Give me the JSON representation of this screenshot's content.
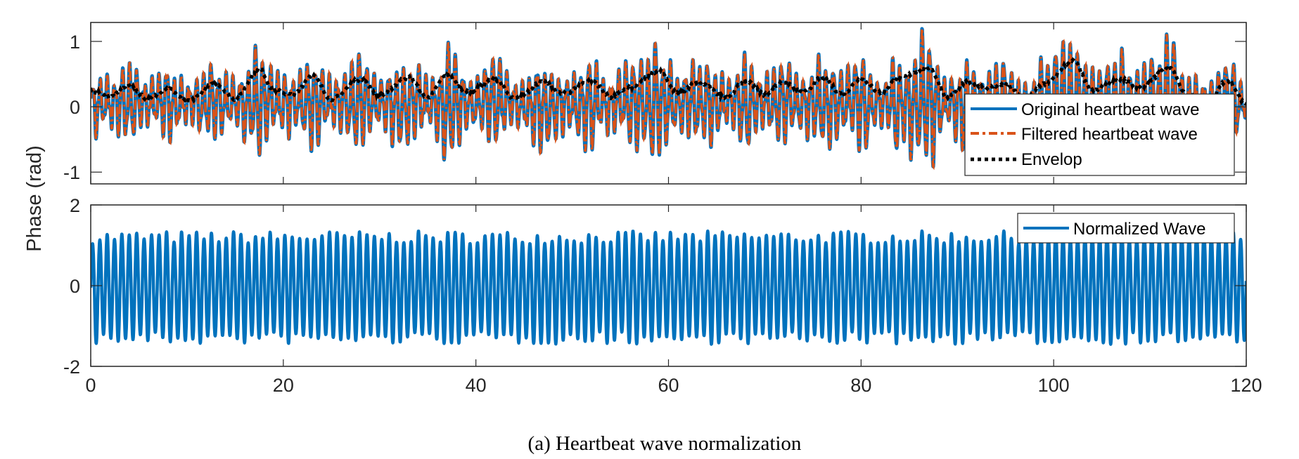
{
  "caption": "(a) Heartbeat wave normalization",
  "chart_data": [
    {
      "type": "line",
      "panel": "top",
      "title": "",
      "xlabel": "",
      "ylabel": "Phase (rad)",
      "xlim": [
        0,
        120
      ],
      "ylim": [
        -1.18,
        1.29
      ],
      "xticks": [
        0,
        20,
        40,
        60,
        80,
        100,
        120
      ],
      "yticks": [
        -1,
        0,
        1
      ],
      "ytick_labels": [
        "-1",
        "0",
        "1"
      ],
      "grid": false,
      "legend_position": "bottom-right",
      "heartbeat_freq_hz": 1.3,
      "series": [
        {
          "name": "Original heartbeat wave",
          "color": "#0072BD",
          "style": "solid"
        },
        {
          "name": "Filtered heartbeat wave",
          "color": "#D95319",
          "style": "dash-dot"
        },
        {
          "name": "Envelop",
          "color": "#000000",
          "style": "dotted"
        }
      ],
      "envelope_keypoints": {
        "x": [
          0,
          2,
          4,
          6,
          8,
          10,
          13,
          15,
          17.5,
          19,
          21,
          23,
          25,
          28,
          30,
          33,
          35,
          37,
          39,
          42,
          44,
          47,
          49,
          52,
          54,
          56,
          59,
          61,
          63,
          66,
          68,
          70,
          72,
          74,
          76,
          78,
          80,
          82,
          84,
          87,
          89,
          91,
          93,
          95,
          97,
          99,
          102,
          104,
          107,
          109,
          112,
          114,
          116,
          118,
          120
        ],
        "y": [
          0.25,
          0.15,
          0.32,
          0.12,
          0.28,
          0.08,
          0.35,
          0.12,
          0.58,
          0.25,
          0.18,
          0.48,
          0.12,
          0.42,
          0.18,
          0.45,
          0.15,
          0.48,
          0.22,
          0.42,
          0.12,
          0.38,
          0.2,
          0.4,
          0.15,
          0.3,
          0.55,
          0.2,
          0.38,
          0.15,
          0.4,
          0.2,
          0.38,
          0.22,
          0.45,
          0.2,
          0.42,
          0.22,
          0.45,
          0.6,
          0.15,
          0.38,
          0.3,
          0.35,
          0.12,
          0.35,
          0.7,
          0.25,
          0.42,
          0.3,
          0.6,
          0.15,
          0.1,
          0.4,
          0.05
        ]
      }
    },
    {
      "type": "line",
      "panel": "bottom",
      "title": "",
      "xlabel": "",
      "ylabel": "Phase (rad)",
      "xlim": [
        0,
        120
      ],
      "ylim": [
        -2,
        2
      ],
      "xticks": [
        0,
        20,
        40,
        60,
        80,
        100,
        120
      ],
      "xtick_labels": [
        "0",
        "20",
        "40",
        "60",
        "80",
        "100",
        "120"
      ],
      "yticks": [
        -2,
        0,
        2
      ],
      "ytick_labels": [
        "-2",
        "0",
        "2"
      ],
      "grid": false,
      "legend_position": "top-right",
      "heartbeat_freq_hz": 1.3,
      "series": [
        {
          "name": "Normalized Wave",
          "color": "#0072BD",
          "style": "solid"
        }
      ],
      "amplitude_range": [
        -1.7,
        1.65
      ]
    }
  ]
}
